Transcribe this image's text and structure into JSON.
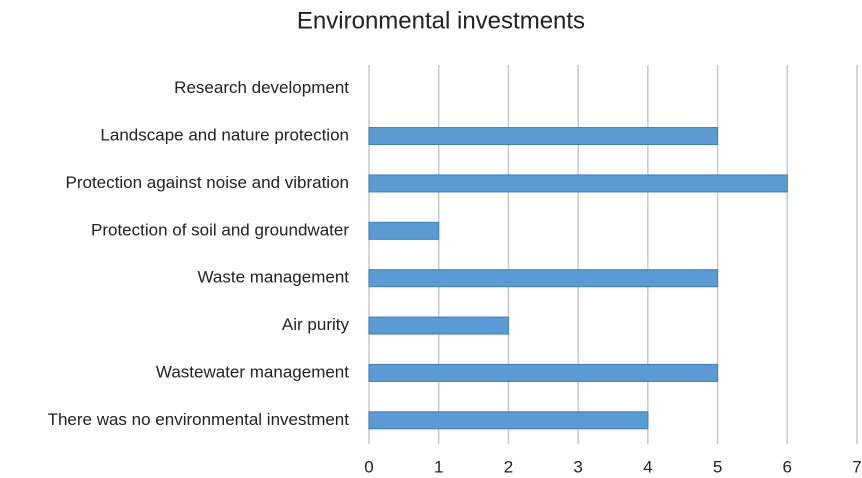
{
  "chart_data": {
    "type": "bar",
    "orientation": "horizontal",
    "title": "Environmental investments",
    "categories": [
      "Research development",
      "Landscape and nature protection",
      "Protection against noise and vibration",
      "Protection of soil and groundwater",
      "Waste management",
      "Air purity",
      "Wastewater management",
      "There was no environmental investment"
    ],
    "values": [
      0,
      5,
      6,
      1,
      5,
      2,
      5,
      4
    ],
    "color": "#5b9bd5",
    "xlim": [
      0,
      7
    ],
    "xticks": [
      0,
      1,
      2,
      3,
      4,
      5,
      6,
      7
    ],
    "grid": true
  }
}
